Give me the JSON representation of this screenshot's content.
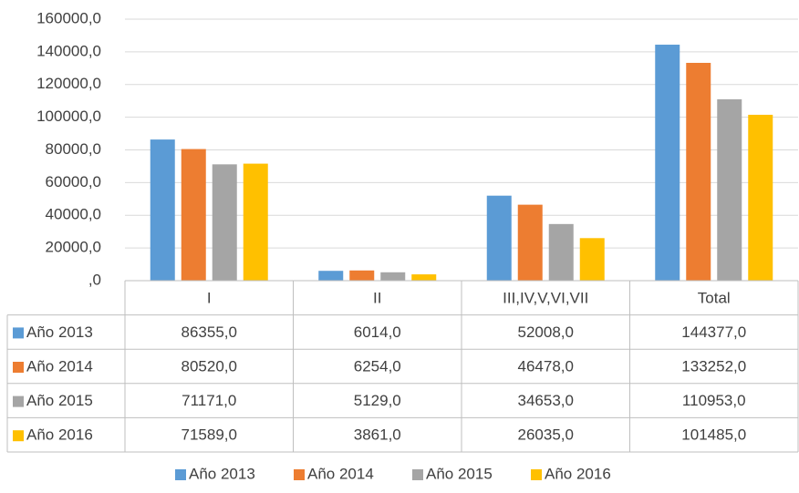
{
  "chart_data": {
    "type": "bar",
    "categories": [
      "I",
      "II",
      "III,IV,V,VI,VII",
      "Total"
    ],
    "series": [
      {
        "name": "Año 2013",
        "color": "#5b9bd5",
        "values": [
          86355,
          6014,
          52008,
          144377
        ],
        "value_labels": [
          "86355,0",
          "6014,0",
          "52008,0",
          "144377,0"
        ]
      },
      {
        "name": "Año 2014",
        "color": "#ed7d31",
        "values": [
          80520,
          6254,
          46478,
          133252
        ],
        "value_labels": [
          "80520,0",
          "6254,0",
          "46478,0",
          "133252,0"
        ]
      },
      {
        "name": "Año 2015",
        "color": "#a5a5a5",
        "values": [
          71171,
          5129,
          34653,
          110953
        ],
        "value_labels": [
          "71171,0",
          "5129,0",
          "34653,0",
          "110953,0"
        ]
      },
      {
        "name": "Año 2016",
        "color": "#ffc000",
        "values": [
          71589,
          3861,
          26035,
          101485
        ],
        "value_labels": [
          "71589,0",
          "3861,0",
          "26035,0",
          "101485,0"
        ]
      }
    ],
    "ylim": [
      0,
      160000
    ],
    "yticks": [
      {
        "value": 0,
        "label": ",0"
      },
      {
        "value": 20000,
        "label": "20000,0"
      },
      {
        "value": 40000,
        "label": "40000,0"
      },
      {
        "value": 60000,
        "label": "60000,0"
      },
      {
        "value": 80000,
        "label": "80000,0"
      },
      {
        "value": 100000,
        "label": "100000,0"
      },
      {
        "value": 120000,
        "label": "120000,0"
      },
      {
        "value": 140000,
        "label": "140000,0"
      },
      {
        "value": 160000,
        "label": "160000,0"
      }
    ],
    "grid": true,
    "legend": "bottom"
  }
}
